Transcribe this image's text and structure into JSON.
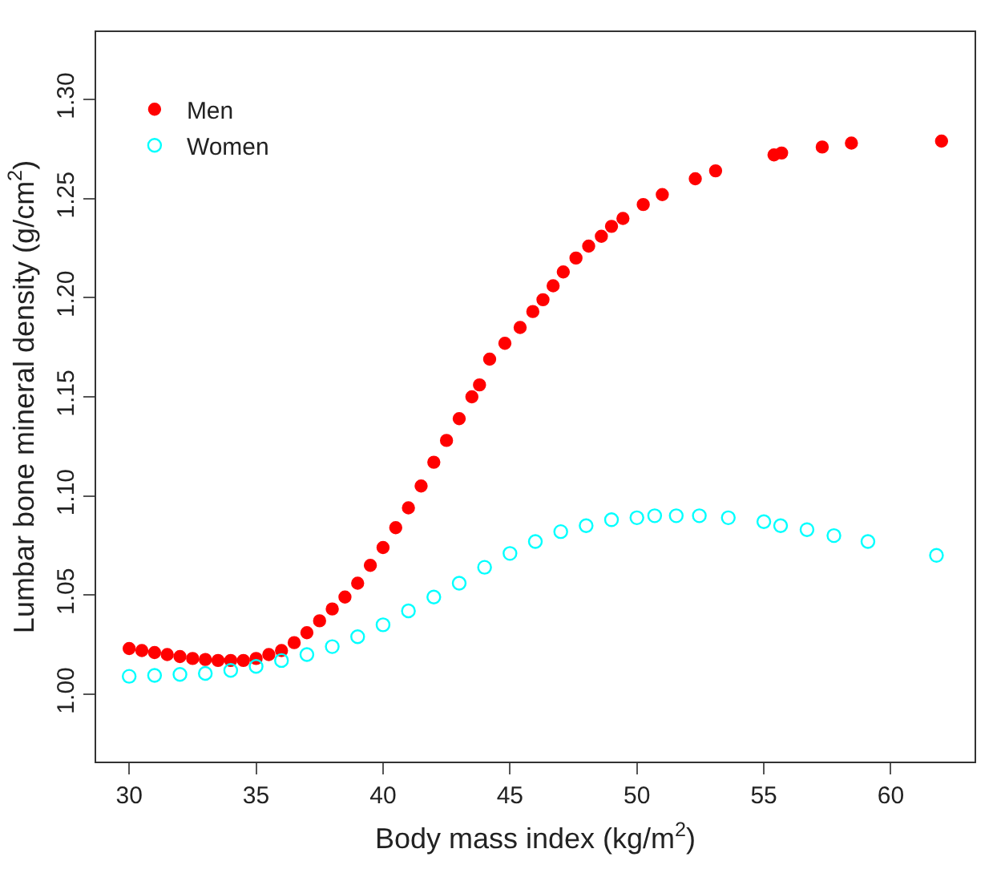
{
  "chart_data": {
    "type": "scatter",
    "xlabel": "Body mass index (kg/m$^{2}$)",
    "ylabel": "Lumbar bone mineral density (g/cm$^{2}$)",
    "xlim": [
      28.7,
      63.3
    ],
    "ylim": [
      0.966,
      1.334
    ],
    "xticks": [
      30,
      35,
      40,
      45,
      50,
      55,
      60
    ],
    "yticks": [
      {
        "value": 1.0,
        "label": "1.00"
      },
      {
        "value": 1.05,
        "label": "1.05"
      },
      {
        "value": 1.1,
        "label": "1.10"
      },
      {
        "value": 1.15,
        "label": "1.15"
      },
      {
        "value": 1.2,
        "label": "1.20"
      },
      {
        "value": 1.25,
        "label": "1.25"
      },
      {
        "value": 1.3,
        "label": "1.30"
      }
    ],
    "legend": "top left",
    "marker": "circle",
    "series": [
      {
        "name": "Men",
        "color": "#ff0000",
        "x": [
          30,
          30.5,
          31,
          31.5,
          32,
          32.5,
          33,
          33.5,
          34,
          34.5,
          35,
          35.5,
          36,
          36.5,
          37,
          37.5,
          38,
          38.5,
          39,
          39.5,
          40,
          40.5,
          41,
          41.5,
          42,
          42.5,
          43,
          43.5,
          43.8,
          44.2,
          44.8,
          45.4,
          45.9,
          46.3,
          46.7,
          47.1,
          47.6,
          48.1,
          48.6,
          49.0,
          49.45,
          50.25,
          51.0,
          52.3,
          53.1,
          55.4,
          55.7,
          57.3,
          58.45,
          62.0
        ],
        "values": [
          1.023,
          1.022,
          1.021,
          1.02,
          1.019,
          1.018,
          1.0175,
          1.017,
          1.017,
          1.017,
          1.018,
          1.02,
          1.022,
          1.026,
          1.031,
          1.037,
          1.043,
          1.049,
          1.056,
          1.065,
          1.074,
          1.084,
          1.094,
          1.105,
          1.117,
          1.128,
          1.139,
          1.15,
          1.156,
          1.169,
          1.177,
          1.185,
          1.193,
          1.199,
          1.206,
          1.213,
          1.22,
          1.226,
          1.231,
          1.236,
          1.24,
          1.247,
          1.252,
          1.26,
          1.264,
          1.272,
          1.273,
          1.276,
          1.278,
          1.279
        ]
      },
      {
        "name": "Women",
        "color": "#00ffff",
        "x": [
          30,
          31,
          32,
          33,
          34,
          35,
          36,
          37,
          38,
          39,
          40,
          41,
          42,
          43,
          44,
          45,
          46,
          47,
          48,
          49,
          50,
          50.7,
          51.55,
          52.46,
          53.6,
          55.0,
          55.66,
          56.7,
          57.76,
          59.1,
          61.8
        ],
        "values": [
          1.009,
          1.0095,
          1.01,
          1.0105,
          1.012,
          1.014,
          1.017,
          1.02,
          1.024,
          1.029,
          1.035,
          1.042,
          1.049,
          1.056,
          1.064,
          1.071,
          1.077,
          1.082,
          1.085,
          1.088,
          1.089,
          1.09,
          1.09,
          1.09,
          1.089,
          1.087,
          1.085,
          1.083,
          1.08,
          1.077,
          1.07
        ]
      }
    ]
  }
}
